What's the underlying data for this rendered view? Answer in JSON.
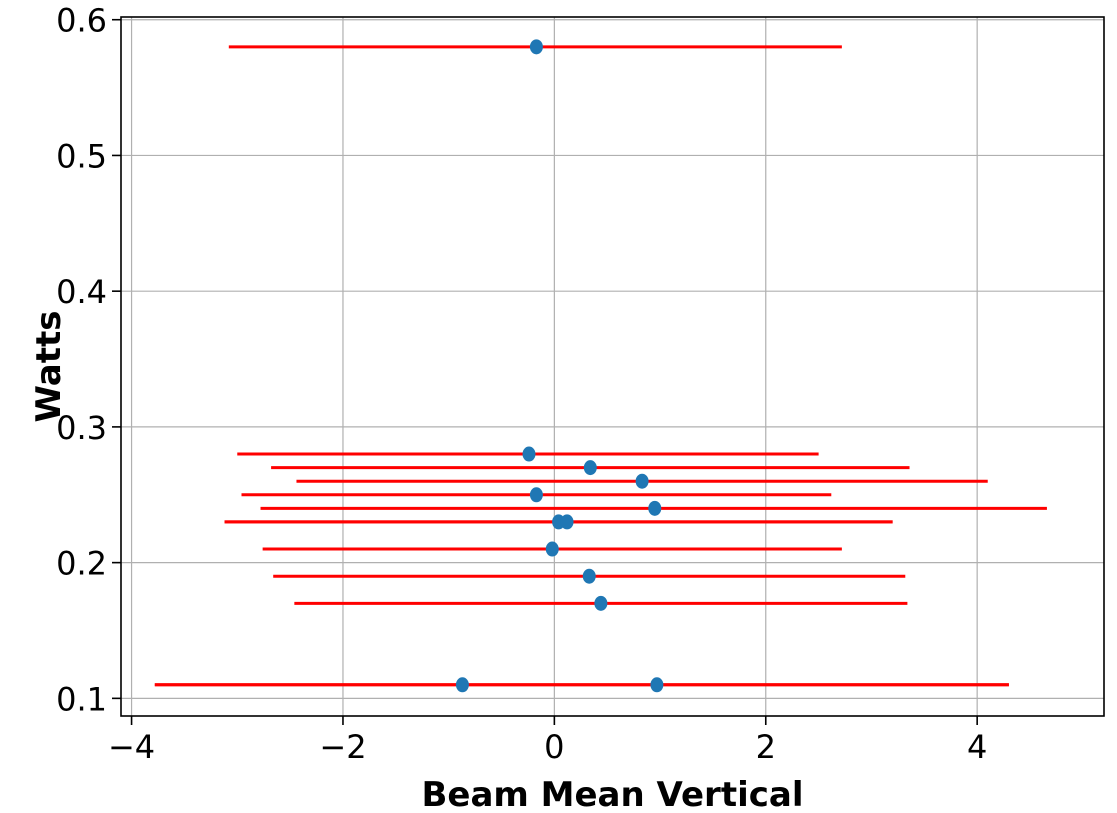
{
  "chart_data": {
    "type": "scatter",
    "xlabel": "Beam Mean Vertical",
    "ylabel": "Watts",
    "xlim": [
      -4.1,
      5.2
    ],
    "ylim": [
      0.087,
      0.602
    ],
    "xticks": [
      -4,
      -2,
      0,
      2,
      4
    ],
    "xtick_labels": [
      "−4",
      "−2",
      "0",
      "2",
      "4"
    ],
    "yticks": [
      0.1,
      0.2,
      0.3,
      0.4,
      0.5,
      0.6
    ],
    "ytick_labels": [
      "0.1",
      "0.2",
      "0.3",
      "0.4",
      "0.5",
      "0.6"
    ],
    "grid": true,
    "point_color": "#1f77b4",
    "errorbar_color": "#ff0000",
    "points": [
      {
        "x": -0.17,
        "y": 0.58,
        "xerr_low": -3.08,
        "xerr_high": 2.72
      },
      {
        "x": -0.24,
        "y": 0.28,
        "xerr_low": -3.0,
        "xerr_high": 2.5
      },
      {
        "x": 0.34,
        "y": 0.27,
        "xerr_low": -2.68,
        "xerr_high": 3.36
      },
      {
        "x": 0.83,
        "y": 0.26,
        "xerr_low": -2.44,
        "xerr_high": 4.1
      },
      {
        "x": -0.17,
        "y": 0.25,
        "xerr_low": -2.96,
        "xerr_high": 2.62
      },
      {
        "x": 0.95,
        "y": 0.24,
        "xerr_low": -2.78,
        "xerr_high": 4.66
      },
      {
        "x": 0.04,
        "y": 0.23,
        "xerr_low": -3.12,
        "xerr_high": 3.2
      },
      {
        "x": 0.12,
        "y": 0.23,
        "xerr_low": -3.12,
        "xerr_high": 3.2
      },
      {
        "x": -0.02,
        "y": 0.21,
        "xerr_low": -2.76,
        "xerr_high": 2.72
      },
      {
        "x": 0.33,
        "y": 0.19,
        "xerr_low": -2.66,
        "xerr_high": 3.32
      },
      {
        "x": 0.44,
        "y": 0.17,
        "xerr_low": -2.46,
        "xerr_high": 3.34
      },
      {
        "x": -0.87,
        "y": 0.11,
        "xerr_low": -3.78,
        "xerr_high": 4.3
      },
      {
        "x": 0.97,
        "y": 0.11,
        "xerr_low": -3.78,
        "xerr_high": 4.3
      }
    ]
  }
}
